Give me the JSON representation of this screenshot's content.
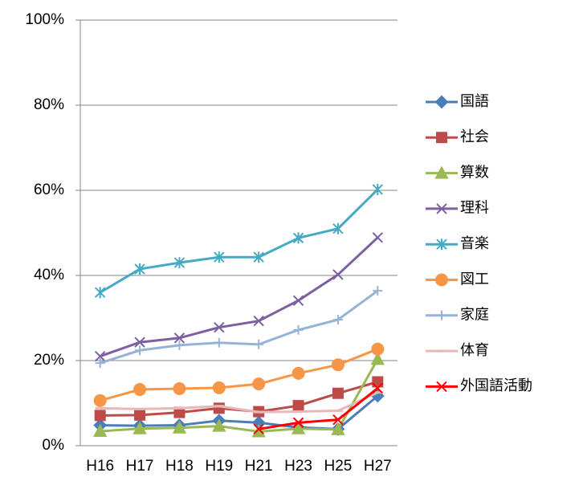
{
  "chart_data": {
    "type": "line",
    "categories": [
      "H16",
      "H17",
      "H18",
      "H19",
      "H21",
      "H23",
      "H25",
      "H27"
    ],
    "ylim": [
      0,
      100
    ],
    "yticks": [
      {
        "value": 0,
        "label": "0%"
      },
      {
        "value": 20,
        "label": "20%"
      },
      {
        "value": 40,
        "label": "40%"
      },
      {
        "value": 60,
        "label": "60%"
      },
      {
        "value": 80,
        "label": "80%"
      },
      {
        "value": 100,
        "label": "100%"
      }
    ],
    "grid": true,
    "legend": "right",
    "series": [
      {
        "name": "国語",
        "color": "#4a7ebb",
        "marker": "diamond",
        "values": [
          4.8,
          4.7,
          4.8,
          5.9,
          5.4,
          4.3,
          3.9,
          11.7
        ]
      },
      {
        "name": "社会",
        "color": "#be4b48",
        "marker": "square",
        "values": [
          7.1,
          7.2,
          7.8,
          8.8,
          8.0,
          9.4,
          12.3,
          15.0
        ]
      },
      {
        "name": "算数",
        "color": "#98b954",
        "marker": "triangle",
        "values": [
          3.4,
          4.0,
          4.2,
          4.6,
          3.3,
          4.0,
          3.8,
          20.3
        ]
      },
      {
        "name": "理科",
        "color": "#7d60a0",
        "marker": "x",
        "values": [
          21.0,
          24.3,
          25.3,
          27.8,
          29.3,
          34.1,
          40.2,
          48.9
        ]
      },
      {
        "name": "音楽",
        "color": "#46aac5",
        "marker": "star",
        "values": [
          36.0,
          41.5,
          43.0,
          44.3,
          44.3,
          48.8,
          51.0,
          60.2
        ]
      },
      {
        "name": "図工",
        "color": "#f79646",
        "marker": "circle",
        "values": [
          10.6,
          13.2,
          13.4,
          13.6,
          14.5,
          17.0,
          19.0,
          22.7
        ]
      },
      {
        "name": "家庭",
        "color": "#95b3d7",
        "marker": "plus",
        "values": [
          19.4,
          22.4,
          23.6,
          24.2,
          23.8,
          27.2,
          29.6,
          36.4
        ]
      },
      {
        "name": "体育",
        "color": "#e6b9b8",
        "marker": "dash",
        "values": [
          8.8,
          8.6,
          8.8,
          9.3,
          7.9,
          8.0,
          8.2,
          12.5
        ]
      },
      {
        "name": "外国語活動",
        "color": "#ff0000",
        "marker": "x",
        "values": [
          null,
          null,
          null,
          null,
          3.9,
          5.4,
          6.1,
          13.5
        ]
      }
    ]
  }
}
